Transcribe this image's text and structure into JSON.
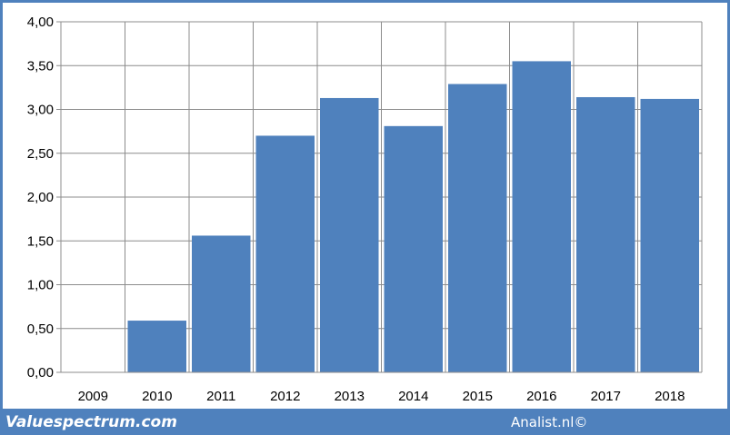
{
  "chart_data": {
    "type": "bar",
    "categories": [
      "2009",
      "2010",
      "2011",
      "2012",
      "2013",
      "2014",
      "2015",
      "2016",
      "2017",
      "2018"
    ],
    "values": [
      0,
      0.59,
      1.56,
      2.7,
      3.13,
      2.81,
      3.29,
      3.55,
      3.14,
      3.12
    ],
    "ylim": [
      0,
      4
    ],
    "yticks": [
      "0,00",
      "0,50",
      "1,00",
      "1,50",
      "2,00",
      "2,50",
      "3,00",
      "3,50",
      "4,00"
    ],
    "grid": true,
    "bar_color": "#4f81bd",
    "title": "",
    "xlabel": "",
    "ylabel": ""
  },
  "footer": {
    "left_brand": "Valuespectrum.com",
    "right_brand": "Analist.nl©"
  },
  "colors": {
    "frame": "#4f81bd",
    "grid": "#8c8c8c"
  }
}
